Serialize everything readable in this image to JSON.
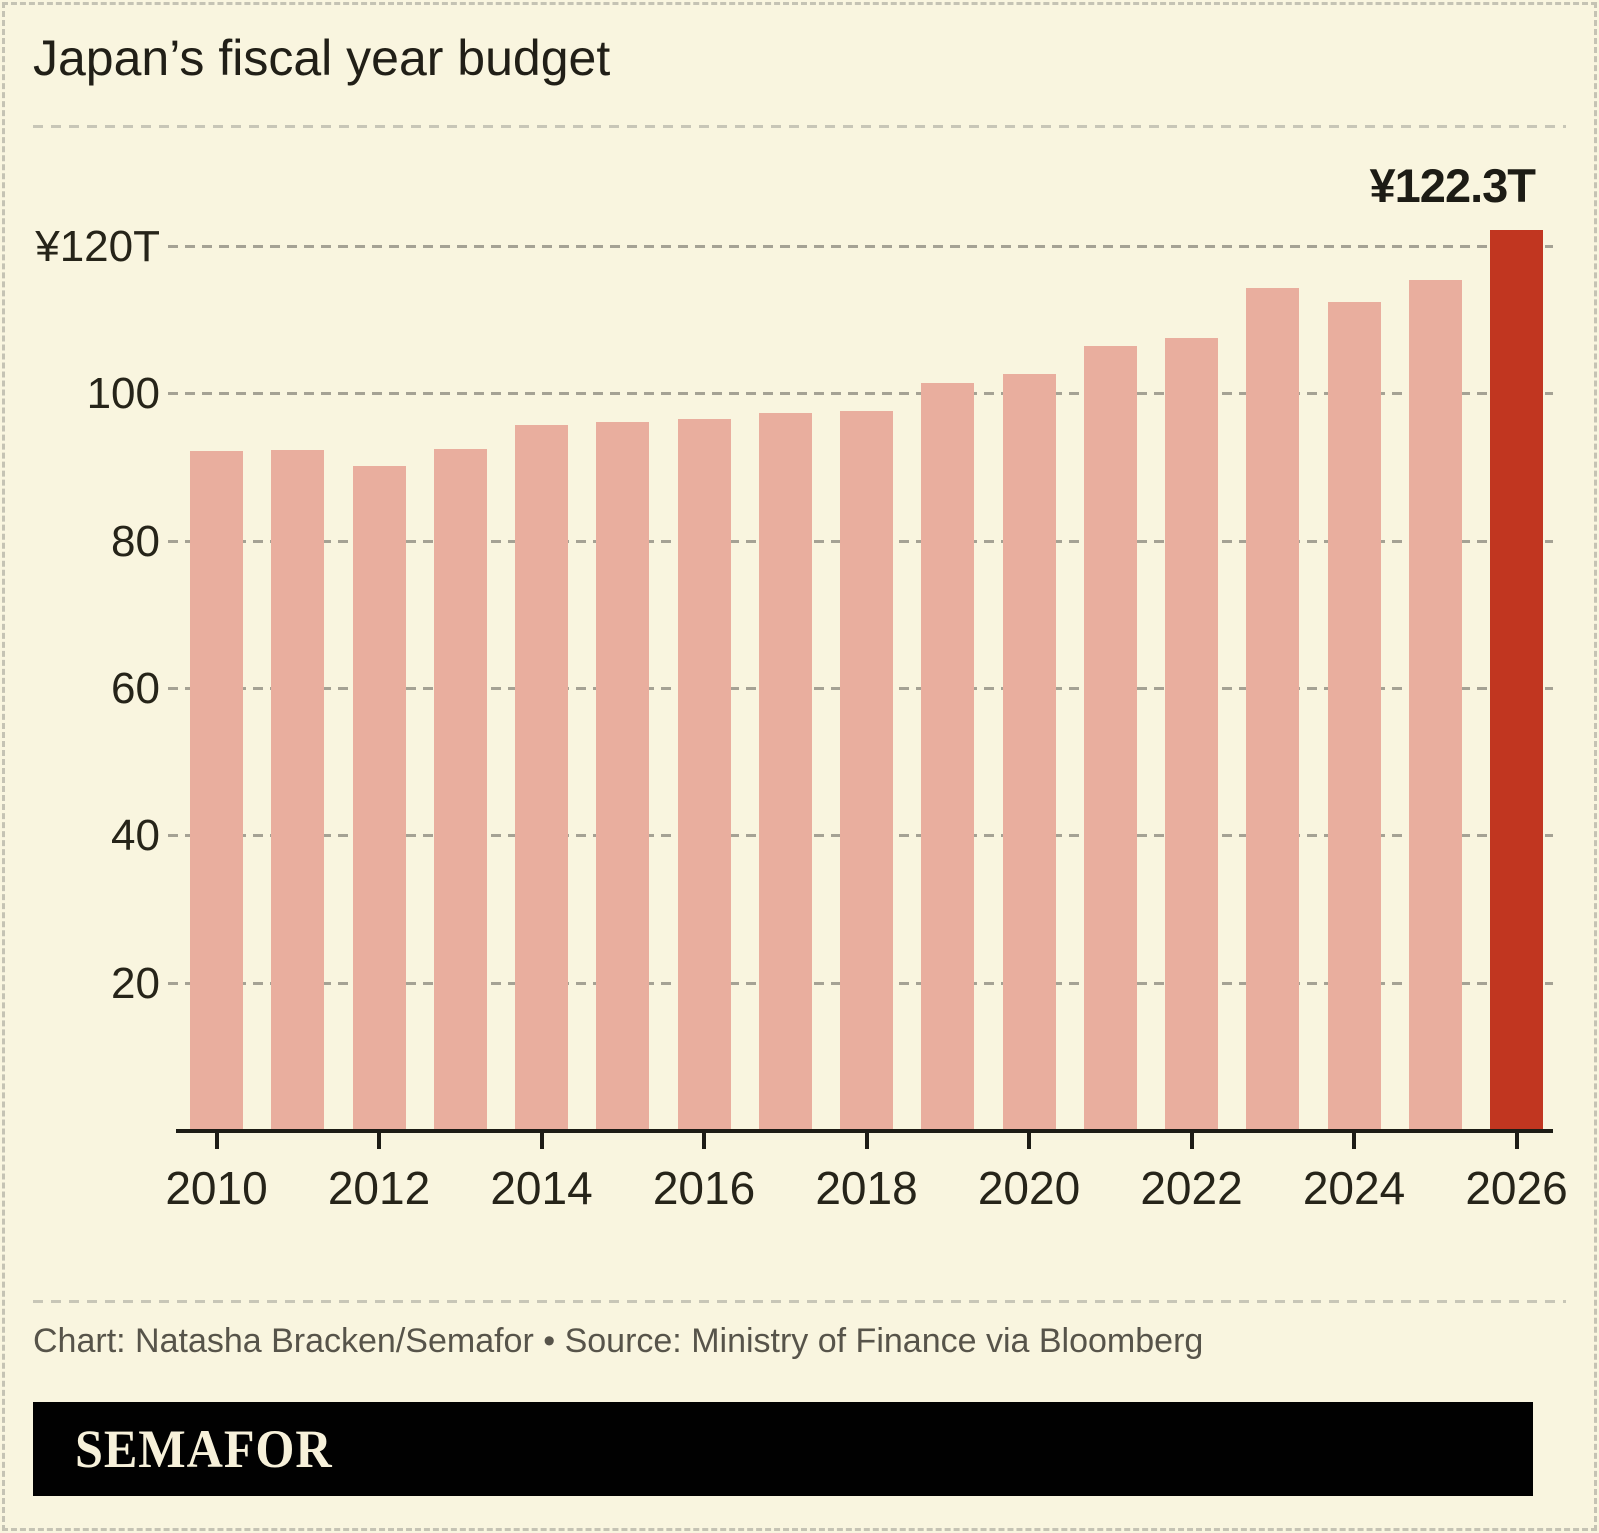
{
  "header": {
    "title": "Japan’s fiscal year budget"
  },
  "chart_data": {
    "type": "bar",
    "title": "Japan’s fiscal year budget",
    "unit": "trillion yen",
    "categories": [
      2010,
      2011,
      2012,
      2013,
      2014,
      2015,
      2016,
      2017,
      2018,
      2019,
      2020,
      2021,
      2022,
      2023,
      2024,
      2025,
      2026
    ],
    "values": [
      92.3,
      92.4,
      90.3,
      92.6,
      95.9,
      96.3,
      96.7,
      97.5,
      97.7,
      101.5,
      102.7,
      106.6,
      107.6,
      114.4,
      112.6,
      115.5,
      122.3
    ],
    "highlight_index": 16,
    "highlight_label": "¥122.3T",
    "xlabel": "",
    "ylabel": "",
    "ylim": [
      0,
      120
    ],
    "grid": "dashed horizontal, behind bars",
    "legend": "none",
    "y_ticks": [
      {
        "value": 120,
        "label": "¥120T"
      },
      {
        "value": 100,
        "label": "100"
      },
      {
        "value": 80,
        "label": "80"
      },
      {
        "value": 60,
        "label": "60"
      },
      {
        "value": 40,
        "label": "40"
      },
      {
        "value": 20,
        "label": "20"
      }
    ],
    "x_tick_years": [
      2010,
      2012,
      2014,
      2016,
      2018,
      2020,
      2022,
      2024,
      2026
    ],
    "colors": {
      "bar": "#e9ae9e",
      "highlight_bar": "#c13620",
      "background": "#f9f5df",
      "gridline": "#a5a294",
      "axis": "#1d1c15"
    }
  },
  "footer": {
    "attribution": "Chart: Natasha Bracken/Semafor • Source: Ministry of Finance via Bloomberg",
    "logo": "SEMAFOR"
  }
}
